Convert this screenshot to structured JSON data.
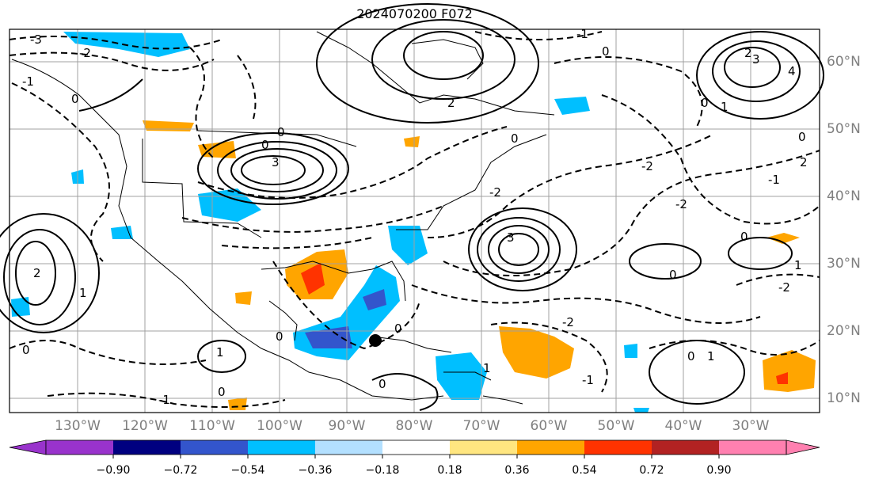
{
  "title": "2024070200 F072",
  "longitude_labels": [
    "130°W",
    "120°W",
    "110°W",
    "100°W",
    "90°W",
    "80°W",
    "70°W",
    "60°W",
    "50°W",
    "40°W",
    "30°W"
  ],
  "latitude_labels": [
    "60°N",
    "50°N",
    "40°N",
    "30°N",
    "20°N",
    "10°N"
  ],
  "colorbar": {
    "ticks": [
      "−0.90",
      "−0.72",
      "−0.54",
      "−0.36",
      "−0.18",
      "0.18",
      "0.36",
      "0.54",
      "0.72",
      "0.90"
    ],
    "colors": [
      "#9933cc",
      "#000080",
      "#3355cc",
      "#00bfff",
      "#b3e0ff",
      "#ffffff",
      "#ffe680",
      "#ffa500",
      "#ff3300",
      "#b22222",
      "#ff80b0"
    ]
  },
  "contour_labels": [
    "-3",
    "-2",
    "-1",
    "0",
    "1",
    "2",
    "3",
    "4"
  ],
  "storm_marker": "black-dot",
  "colors": {
    "axis": "#000000",
    "grid": "#a0a0a0",
    "tick_label": "#7f7f7f",
    "coast": "#000000"
  }
}
